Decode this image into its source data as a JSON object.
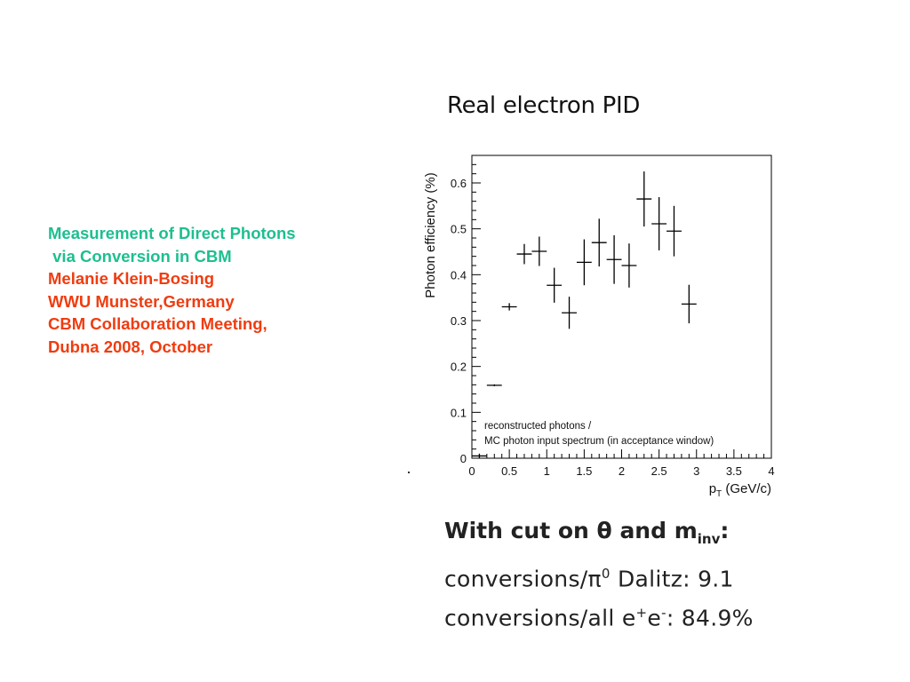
{
  "info": {
    "line1": "Measurement of Direct Photons",
    "line2": " via Conversion in CBM",
    "line3": "Melanie Klein-Bosing",
    "line4": "WWU Munster,Germany",
    "line5": "CBM Collaboration Meeting,",
    "line6": "Dubna 2008, October"
  },
  "colors": {
    "green": "#1dbf8f",
    "red": "#f03c10"
  },
  "chart_data": {
    "type": "scatter",
    "title": "Real electron PID",
    "ylabel": "Photon efficiency (%)",
    "xlabel_main": "p",
    "xlabel_sub": "T",
    "xlabel_unit": " (GeV/c)",
    "xlim": [
      0,
      4
    ],
    "ylim": [
      0,
      0.66
    ],
    "xticks": [
      "0",
      "0.5",
      "1",
      "1.5",
      "2",
      "2.5",
      "3",
      "3.5",
      "4"
    ],
    "yticks": [
      "0",
      "0.1",
      "0.2",
      "0.3",
      "0.4",
      "0.5",
      "0.6"
    ],
    "annotation_line1": "reconstructed photons /",
    "annotation_line2": "MC photon input spectrum (in acceptance window)",
    "points": [
      {
        "x": 0.1,
        "y": 0.005,
        "xerr": 0.1,
        "yerr": 0.005
      },
      {
        "x": 0.3,
        "y": 0.159,
        "xerr": 0.1,
        "yerr": 0.002
      },
      {
        "x": 0.5,
        "y": 0.33,
        "xerr": 0.1,
        "yerr": 0.008
      },
      {
        "x": 0.7,
        "y": 0.445,
        "xerr": 0.1,
        "yerr": 0.022
      },
      {
        "x": 0.9,
        "y": 0.451,
        "xerr": 0.1,
        "yerr": 0.032
      },
      {
        "x": 1.1,
        "y": 0.377,
        "xerr": 0.1,
        "yerr": 0.038
      },
      {
        "x": 1.3,
        "y": 0.317,
        "xerr": 0.1,
        "yerr": 0.035
      },
      {
        "x": 1.5,
        "y": 0.427,
        "xerr": 0.1,
        "yerr": 0.05
      },
      {
        "x": 1.7,
        "y": 0.47,
        "xerr": 0.1,
        "yerr": 0.052
      },
      {
        "x": 1.9,
        "y": 0.433,
        "xerr": 0.1,
        "yerr": 0.053
      },
      {
        "x": 2.1,
        "y": 0.42,
        "xerr": 0.1,
        "yerr": 0.048
      },
      {
        "x": 2.3,
        "y": 0.565,
        "xerr": 0.1,
        "yerr": 0.06
      },
      {
        "x": 2.5,
        "y": 0.511,
        "xerr": 0.1,
        "yerr": 0.058
      },
      {
        "x": 2.7,
        "y": 0.495,
        "xerr": 0.1,
        "yerr": 0.055
      },
      {
        "x": 2.9,
        "y": 0.336,
        "xerr": 0.1,
        "yerr": 0.042
      }
    ]
  },
  "summary": {
    "cut_prefix": "With cut on ",
    "theta": "θ",
    "cut_and": " and m",
    "cut_sub": "inv",
    "cut_suffix": ":",
    "dalitz_prefix": "conversions/",
    "pi": "π",
    "pi_sup": "0",
    "dalitz_suffix": " Dalitz: 9.1",
    "all_prefix": "conversions/all e",
    "e_plus": "+",
    "e_letter": "e",
    "e_minus": "-",
    "all_suffix": ": 84.9%"
  }
}
